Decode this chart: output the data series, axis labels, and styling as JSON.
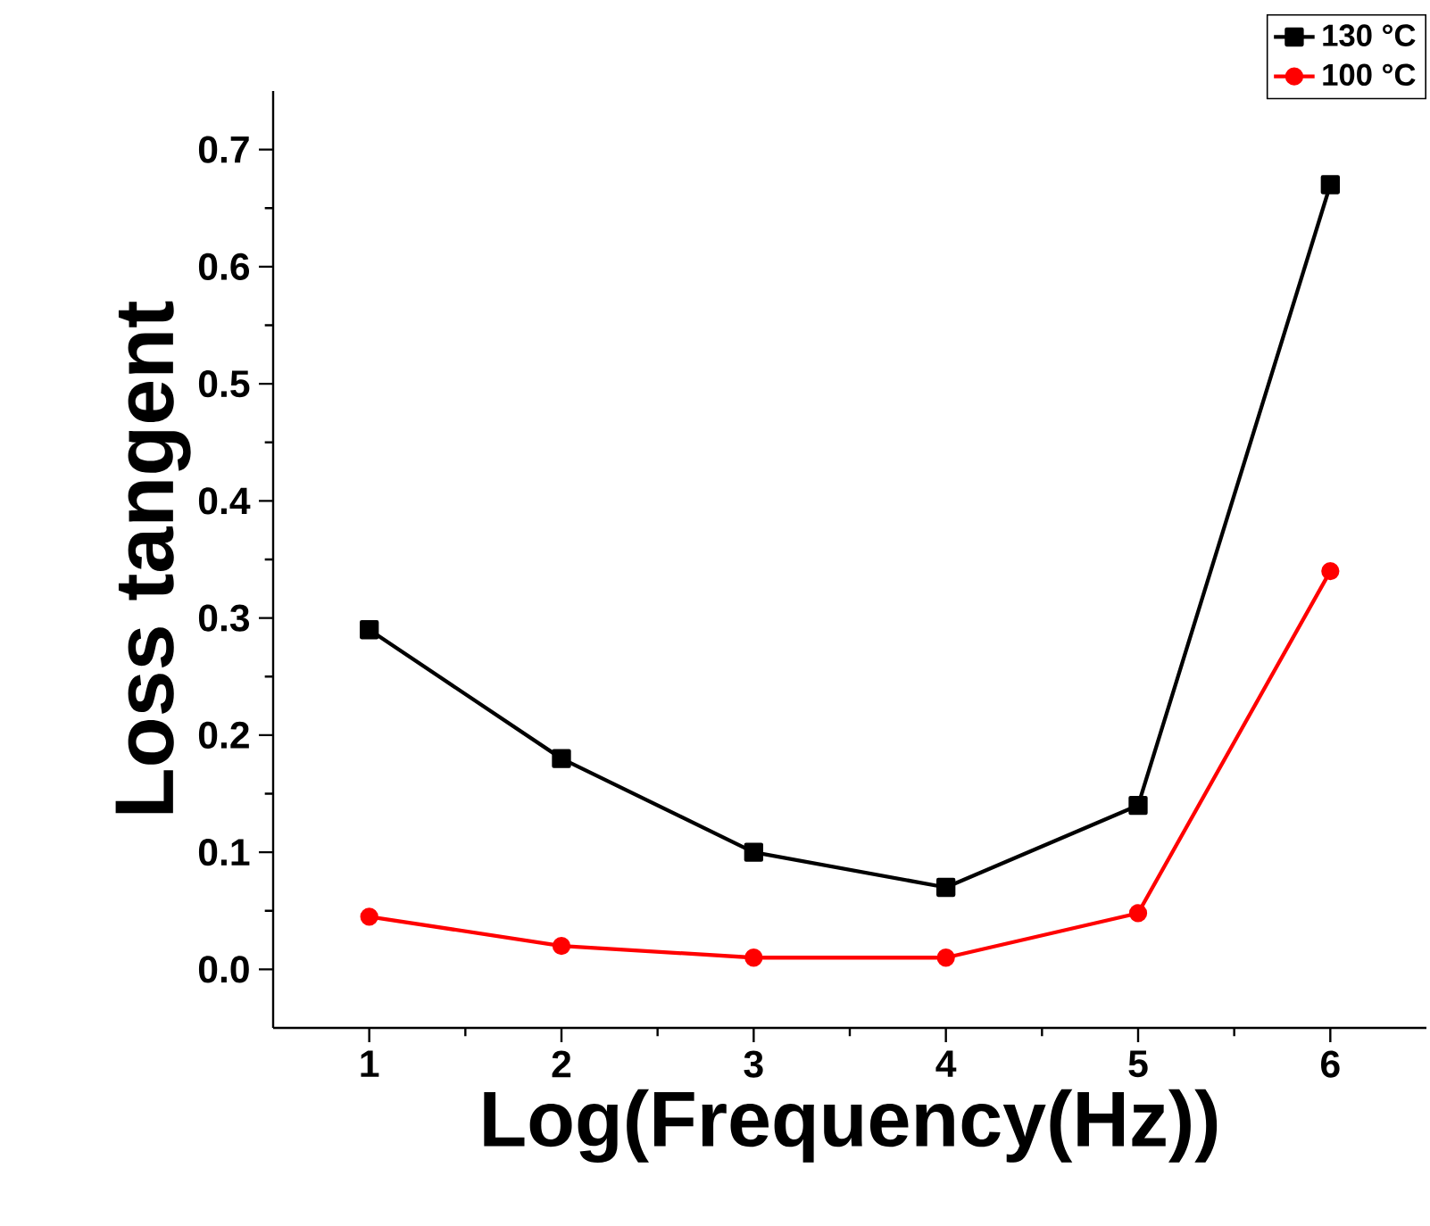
{
  "chart_data": {
    "type": "line",
    "xlabel": "Log(Frequency(Hz))",
    "ylabel": "Loss tangent",
    "x": [
      1,
      2,
      3,
      4,
      5,
      6
    ],
    "series": [
      {
        "name": "130 °C",
        "color": "#000000",
        "marker": "square",
        "values": [
          0.29,
          0.18,
          0.1,
          0.07,
          0.14,
          0.67
        ]
      },
      {
        "name": "100 °C",
        "color": "#ff0000",
        "marker": "circle",
        "values": [
          0.045,
          0.02,
          0.01,
          0.01,
          0.048,
          0.34
        ]
      }
    ],
    "xlim": [
      0.5,
      6.5
    ],
    "xticks": [
      1,
      2,
      3,
      4,
      5,
      6
    ],
    "ylim": [
      -0.05,
      0.75
    ],
    "yticks": [
      {
        "value": 0,
        "label": "0.0"
      },
      0.1,
      0.2,
      0.3,
      0.4,
      0.5,
      0.6,
      0.7
    ],
    "grid": false,
    "legend": "top right",
    "line_style": "solid"
  }
}
